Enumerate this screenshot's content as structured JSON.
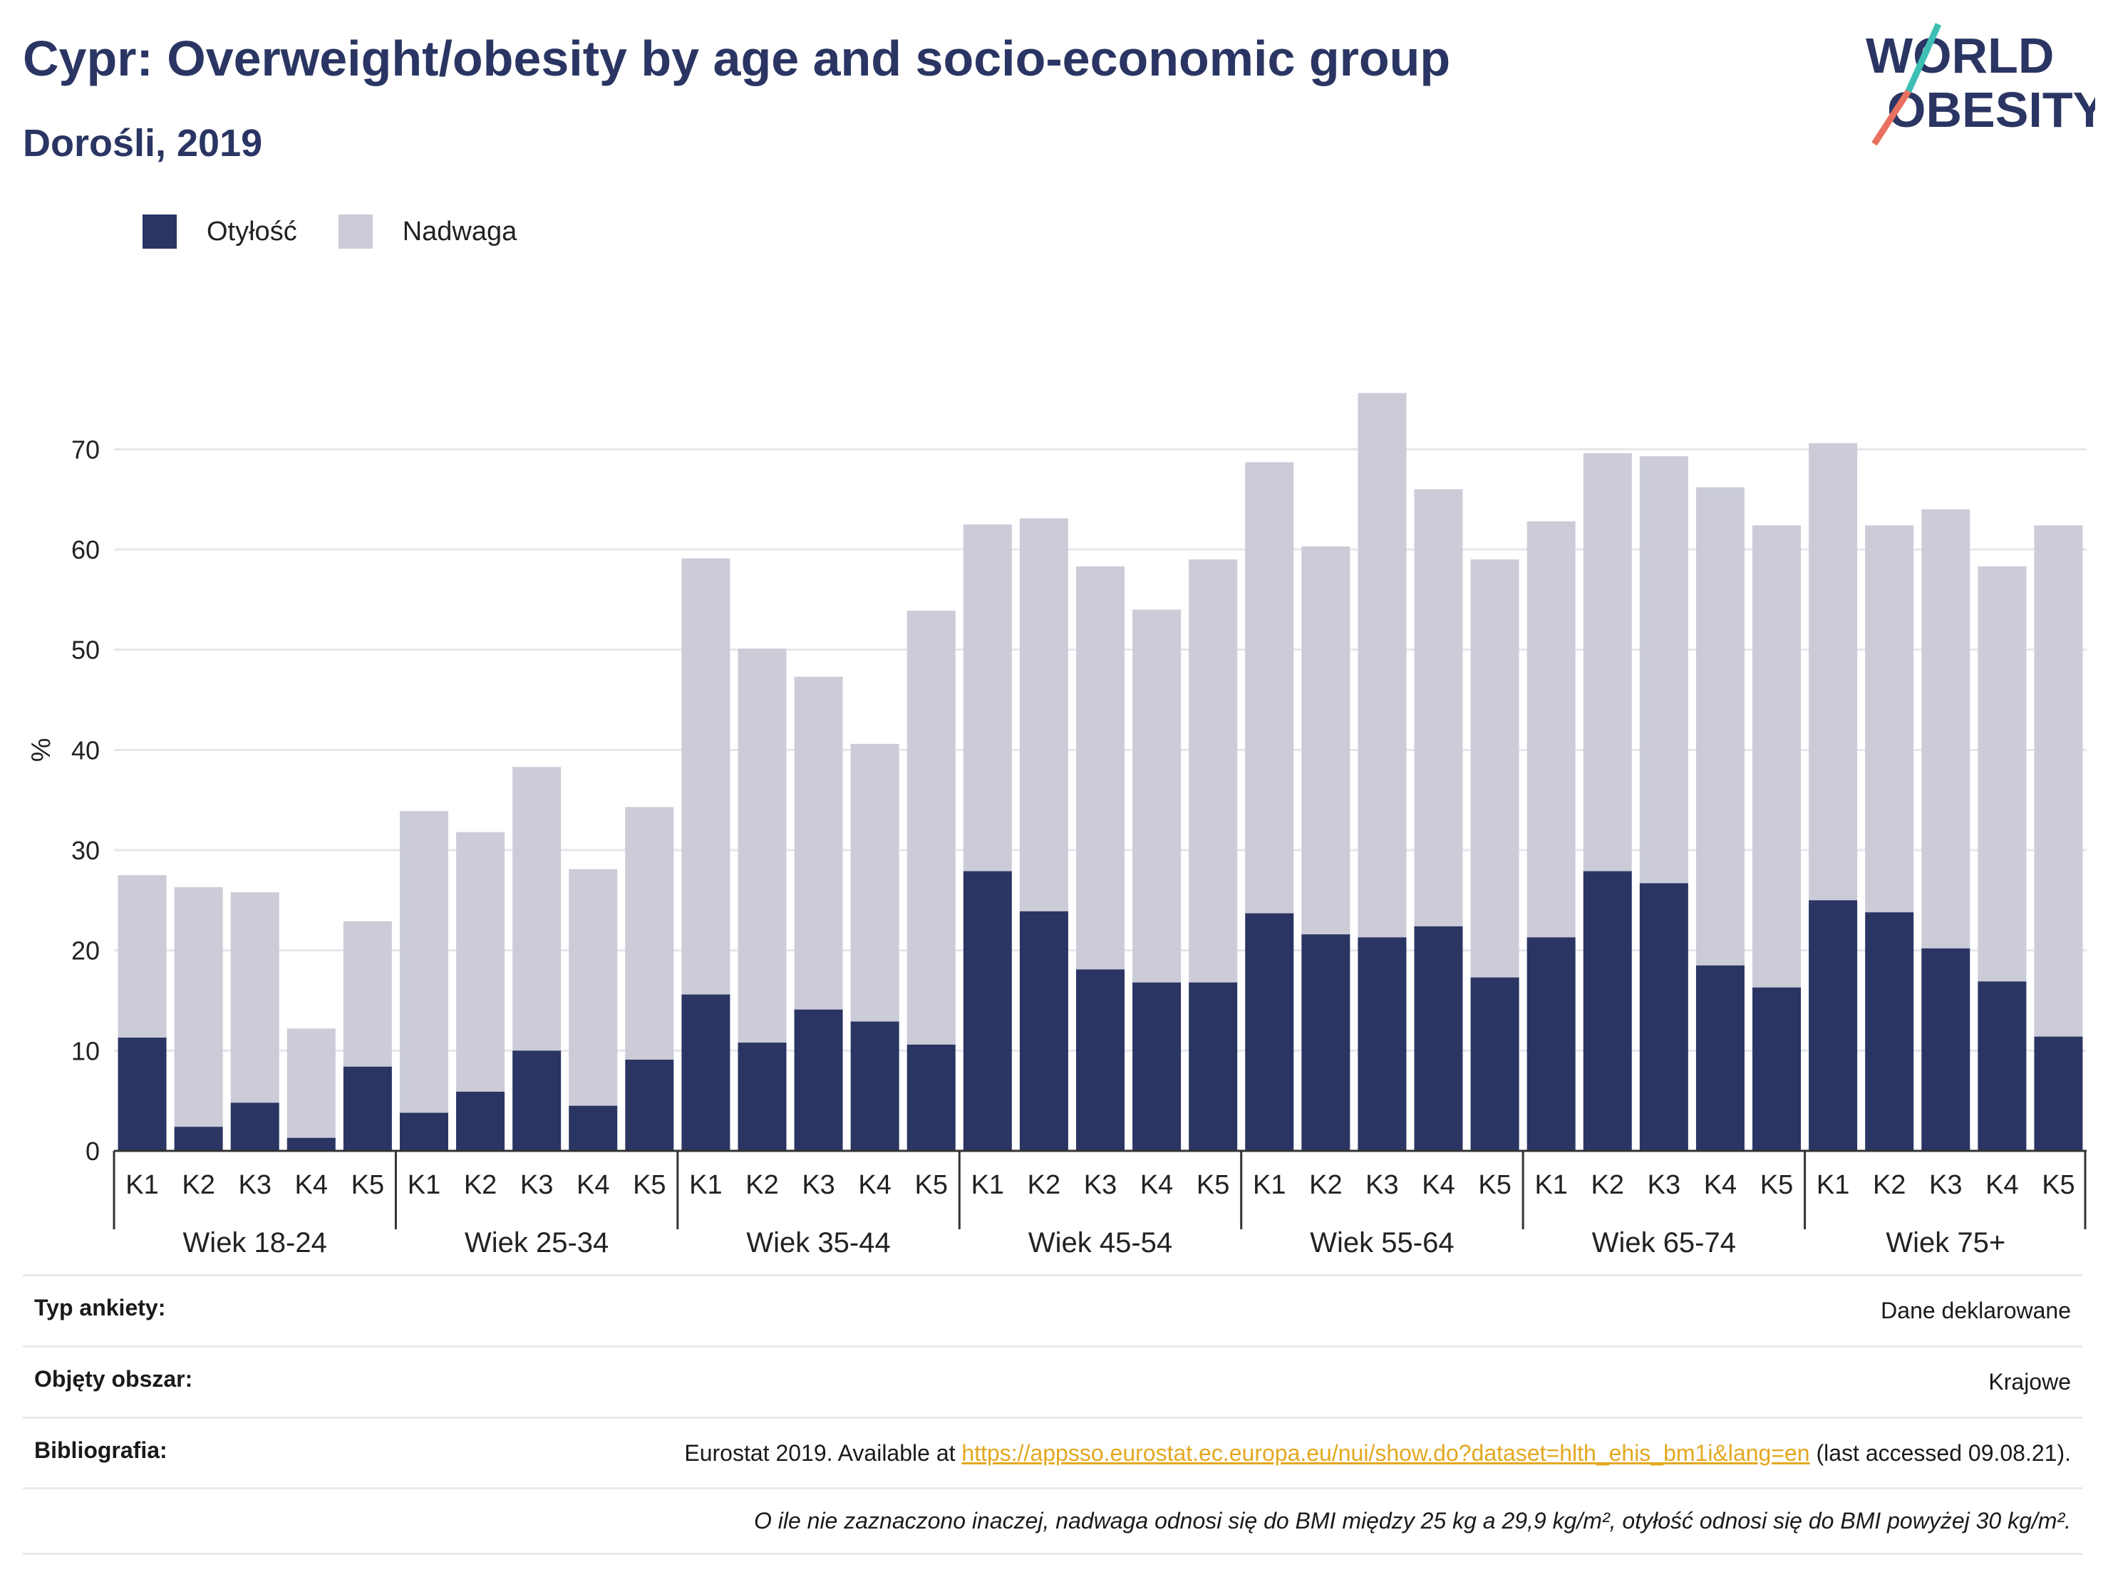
{
  "header": {
    "title": "Cypr: Overweight/obesity by age and socio-economic group",
    "subtitle": "Dorośli, 2019"
  },
  "logo": {
    "line1": "WORLD",
    "line2": "OBESITY"
  },
  "legend": [
    {
      "label": "Otyłość",
      "color": "#2a3563"
    },
    {
      "label": "Nadwaga",
      "color": "#cbccd8"
    }
  ],
  "chart_data": {
    "type": "bar",
    "stacked": true,
    "ylabel": "%",
    "ylim": [
      0,
      75
    ],
    "yticks": [
      0,
      10,
      20,
      30,
      40,
      50,
      60,
      70
    ],
    "grid": true,
    "legend_position": "top-left",
    "groups": [
      "Wiek 18-24",
      "Wiek 25-34",
      "Wiek 35-44",
      "Wiek 45-54",
      "Wiek 55-64",
      "Wiek 65-74",
      "Wiek 75+"
    ],
    "subcategories": [
      "K1",
      "K2",
      "K3",
      "K4",
      "K5"
    ],
    "series": [
      {
        "name": "Otyłość",
        "color": "#2a3563",
        "values": [
          [
            11.3,
            2.4,
            4.8,
            1.3,
            8.4
          ],
          [
            3.8,
            5.9,
            10.0,
            4.5,
            9.1
          ],
          [
            15.6,
            10.8,
            14.1,
            12.9,
            10.6
          ],
          [
            27.9,
            23.9,
            18.1,
            16.8,
            16.8
          ],
          [
            23.7,
            21.6,
            21.3,
            22.4,
            17.3
          ],
          [
            21.3,
            27.9,
            26.7,
            18.5,
            16.3
          ],
          [
            25.0,
            23.8,
            20.2,
            16.9,
            11.4
          ]
        ]
      },
      {
        "name": "Nadwaga",
        "color": "#cbccd8",
        "values": [
          [
            16.2,
            23.9,
            21.0,
            10.9,
            14.5
          ],
          [
            30.1,
            25.9,
            28.3,
            23.6,
            25.2
          ],
          [
            43.5,
            39.3,
            33.2,
            27.7,
            43.3
          ],
          [
            34.6,
            39.2,
            40.2,
            37.2,
            42.2
          ],
          [
            45.0,
            38.7,
            54.3,
            43.6,
            41.7
          ],
          [
            41.5,
            41.7,
            42.6,
            47.7,
            46.1
          ],
          [
            45.6,
            38.6,
            43.8,
            41.4,
            51.0
          ]
        ]
      }
    ]
  },
  "meta": {
    "survey_label": "Typ ankiety:",
    "survey_value": "Dane deklarowane",
    "area_label": "Objęty obszar:",
    "area_value": "Krajowe",
    "biblio_label": "Bibliografia:",
    "biblio_pre": "Eurostat 2019. Available at ",
    "biblio_link": "https://appsso.eurostat.ec.europa.eu/nui/show.do?dataset=hlth_ehis_bm1i&lang=en",
    "biblio_post": " (last accessed 09.08.21).",
    "note": "O ile nie zaznaczono inaczej, nadwaga odnosi się do BMI między 25 kg a 29,9 kg/m², otyłość odnosi się do BMI powyżej 30 kg/m²."
  }
}
